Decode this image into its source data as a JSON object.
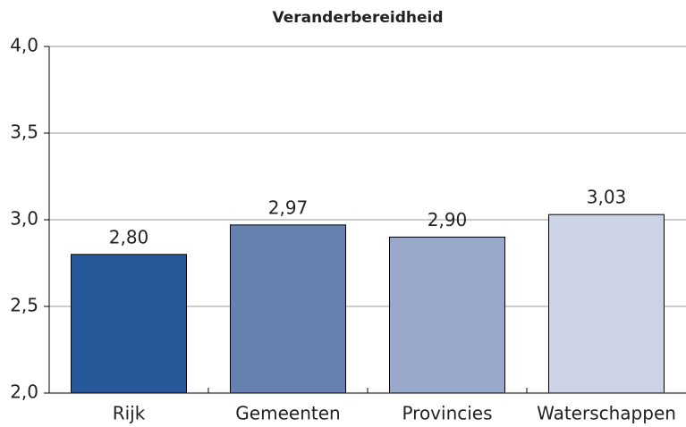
{
  "chart_data": {
    "type": "bar",
    "title": "Veranderbereidheid",
    "categories": [
      "Rijk",
      "Gemeenten",
      "Provincies",
      "Waterschappen"
    ],
    "values": [
      2.8,
      2.97,
      2.9,
      3.03
    ],
    "value_labels": [
      "2,80",
      "2,97",
      "2,90",
      "3,03"
    ],
    "colors": [
      "#26589a",
      "#6680b0",
      "#9aa8cc",
      "#cdd3e6"
    ],
    "ylim": [
      2.0,
      4.0
    ],
    "yticks": [
      {
        "value": 2.0,
        "label": "2,0"
      },
      {
        "value": 2.5,
        "label": "2,5"
      },
      {
        "value": 3.0,
        "label": "3,0"
      },
      {
        "value": 3.5,
        "label": "3,5"
      },
      {
        "value": 4.0,
        "label": "4,0"
      }
    ],
    "grid": true
  }
}
